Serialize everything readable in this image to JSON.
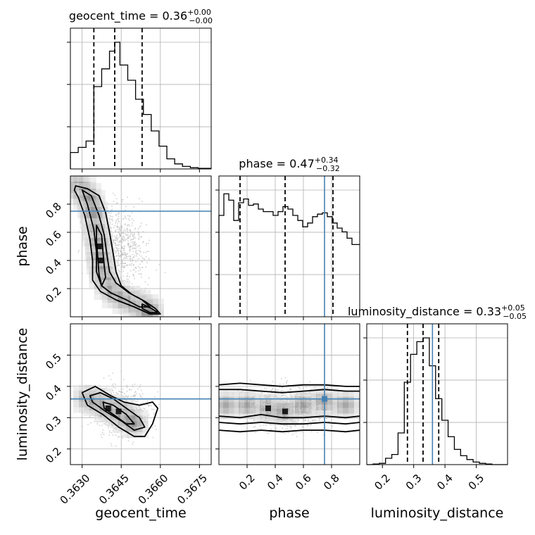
{
  "chart_data": {
    "type": "corner",
    "parameters": [
      {
        "name": "geocent_time",
        "axis_label": "geocent_time",
        "title": {
          "label": "geocent_time",
          "median": "0.36",
          "plus": "+0.00",
          "minus": "−0.00"
        },
        "range": [
          0.36255,
          0.36795
        ],
        "ticks": [
          0.363,
          0.3645,
          0.366,
          0.3675
        ],
        "tick_labels": [
          "0.3630",
          "0.3645",
          "0.3660",
          "0.3675"
        ],
        "quantiles": [
          0.36345,
          0.36425,
          0.3653
        ],
        "truth": null,
        "hist_x": [
          0.36255,
          0.36285,
          0.36315,
          0.36345,
          0.36375,
          0.36405,
          0.36425,
          0.36445,
          0.36475,
          0.36505,
          0.36535,
          0.36565,
          0.36595,
          0.36625,
          0.36655,
          0.36685,
          0.36715,
          0.36745,
          0.36795
        ],
        "hist_y": [
          0.13,
          0.17,
          0.22,
          0.65,
          0.79,
          0.93,
          1.0,
          0.82,
          0.7,
          0.55,
          0.43,
          0.3,
          0.18,
          0.08,
          0.04,
          0.02,
          0.01,
          0.005
        ],
        "hist_yticks": [
          0.333,
          0.667,
          1.0
        ]
      },
      {
        "name": "phase",
        "axis_label": "phase",
        "title": {
          "label": "phase",
          "median": "0.47",
          "plus": "+0.34",
          "minus": "−0.32"
        },
        "range": [
          0.0,
          1.0
        ],
        "ticks": [
          0.2,
          0.4,
          0.6,
          0.8
        ],
        "tick_labels": [
          "0.2",
          "0.4",
          "0.6",
          "0.8"
        ],
        "quantiles": [
          0.15,
          0.47,
          0.81
        ],
        "truth": 0.75,
        "hist_x": [
          0,
          0.035,
          0.07,
          0.105,
          0.14,
          0.175,
          0.21,
          0.245,
          0.28,
          0.315,
          0.35,
          0.385,
          0.42,
          0.455,
          0.49,
          0.525,
          0.56,
          0.595,
          0.63,
          0.665,
          0.7,
          0.735,
          0.77,
          0.805,
          0.84,
          0.875,
          0.91,
          0.945,
          1.0
        ],
        "hist_y": [
          0.8,
          0.97,
          0.92,
          0.76,
          0.9,
          0.93,
          0.88,
          0.89,
          0.85,
          0.83,
          0.83,
          0.8,
          0.83,
          0.87,
          0.85,
          0.8,
          0.76,
          0.71,
          0.74,
          0.79,
          0.81,
          0.82,
          0.79,
          0.74,
          0.7,
          0.67,
          0.62,
          0.57
        ],
        "hist_yticks": [
          0.333,
          0.667,
          1.0
        ]
      },
      {
        "name": "luminosity_distance",
        "axis_label": "luminosity_distance",
        "title": {
          "label": "luminosity_distance",
          "median": "0.33",
          "plus": "+0.05",
          "minus": "−0.05"
        },
        "range": [
          0.15,
          0.6
        ],
        "ticks": [
          0.2,
          0.3,
          0.4,
          0.5
        ],
        "tick_labels": [
          "0.2",
          "0.3",
          "0.4",
          "0.5"
        ],
        "quantiles": [
          0.28,
          0.33,
          0.38
        ],
        "truth": 0.36,
        "hist_x": [
          0.15,
          0.17,
          0.19,
          0.21,
          0.23,
          0.25,
          0.27,
          0.29,
          0.31,
          0.33,
          0.35,
          0.37,
          0.39,
          0.41,
          0.43,
          0.45,
          0.47,
          0.49,
          0.51,
          0.53,
          0.55,
          0.6
        ],
        "hist_y": [
          0.0,
          0.005,
          0.01,
          0.05,
          0.08,
          0.25,
          0.65,
          0.87,
          0.97,
          1.0,
          0.78,
          0.52,
          0.35,
          0.22,
          0.12,
          0.07,
          0.04,
          0.02,
          0.01,
          0.005,
          0.0
        ],
        "hist_yticks": [
          0.333,
          0.667,
          1.0
        ]
      }
    ],
    "pairs": [
      {
        "x": "geocent_time",
        "y": "phase",
        "truth_x": null,
        "truth_y": 0.75,
        "yticks": [
          0.2,
          0.4,
          0.6,
          0.8
        ],
        "ytick_labels": [
          "0.2",
          "0.4",
          "0.6",
          "0.8"
        ],
        "density_ridge": [
          [
            0.3627,
            0.94
          ],
          [
            0.363,
            0.9
          ],
          [
            0.3632,
            0.85
          ],
          [
            0.36335,
            0.8
          ],
          [
            0.36345,
            0.72
          ],
          [
            0.36355,
            0.6
          ],
          [
            0.36365,
            0.5
          ],
          [
            0.3637,
            0.4
          ],
          [
            0.3638,
            0.3
          ],
          [
            0.364,
            0.22
          ],
          [
            0.3643,
            0.16
          ],
          [
            0.3647,
            0.12
          ],
          [
            0.3651,
            0.09
          ],
          [
            0.3654,
            0.06
          ],
          [
            0.3656,
            0.03
          ]
        ],
        "contours": [
          [
            [
              0.36275,
              0.93
            ],
            [
              0.3632,
              0.91
            ],
            [
              0.36365,
              0.86
            ],
            [
              0.3639,
              0.74
            ],
            [
              0.36405,
              0.6
            ],
            [
              0.3642,
              0.44
            ],
            [
              0.3643,
              0.32
            ],
            [
              0.3645,
              0.22
            ],
            [
              0.3649,
              0.16
            ],
            [
              0.3654,
              0.11
            ],
            [
              0.3658,
              0.06
            ],
            [
              0.366,
              0.02
            ],
            [
              0.3656,
              0.02
            ],
            [
              0.365,
              0.07
            ],
            [
              0.3643,
              0.12
            ],
            [
              0.3637,
              0.18
            ],
            [
              0.3634,
              0.26
            ],
            [
              0.3634,
              0.4
            ],
            [
              0.3633,
              0.55
            ],
            [
              0.3631,
              0.72
            ],
            [
              0.36285,
              0.85
            ],
            [
              0.3627,
              0.9
            ]
          ],
          [
            [
              0.363,
              0.9
            ],
            [
              0.36335,
              0.86
            ],
            [
              0.36365,
              0.72
            ],
            [
              0.36385,
              0.58
            ],
            [
              0.36395,
              0.44
            ],
            [
              0.36405,
              0.32
            ],
            [
              0.3643,
              0.24
            ],
            [
              0.3648,
              0.17
            ],
            [
              0.3653,
              0.12
            ],
            [
              0.3656,
              0.07
            ],
            [
              0.3652,
              0.07
            ],
            [
              0.3647,
              0.12
            ],
            [
              0.3641,
              0.17
            ],
            [
              0.36375,
              0.22
            ],
            [
              0.36355,
              0.32
            ],
            [
              0.36355,
              0.46
            ],
            [
              0.36345,
              0.62
            ],
            [
              0.3632,
              0.8
            ]
          ],
          [
            [
              0.36355,
              0.65
            ],
            [
              0.36375,
              0.58
            ],
            [
              0.3638,
              0.46
            ],
            [
              0.36385,
              0.36
            ],
            [
              0.3639,
              0.28
            ],
            [
              0.36375,
              0.22
            ],
            [
              0.36365,
              0.3
            ],
            [
              0.3636,
              0.42
            ],
            [
              0.36355,
              0.54
            ]
          ],
          [
            [
              0.3653,
              0.09
            ],
            [
              0.36565,
              0.06
            ],
            [
              0.3659,
              0.03
            ],
            [
              0.3656,
              0.03
            ],
            [
              0.3653,
              0.06
            ]
          ]
        ],
        "scatter_center": [
          0.3644,
          0.5
        ],
        "scatter_spread": [
          0.0012,
          0.28
        ]
      },
      {
        "x": "geocent_time",
        "y": "luminosity_distance",
        "truth_x": null,
        "truth_y": 0.36,
        "yticks": [
          0.2,
          0.3,
          0.4,
          0.5
        ],
        "ytick_labels": [
          "0.2",
          "0.3",
          "0.4",
          "0.5"
        ],
        "density_ridge": [
          [
            0.3632,
            0.36
          ],
          [
            0.3636,
            0.35
          ],
          [
            0.364,
            0.33
          ],
          [
            0.3644,
            0.32
          ],
          [
            0.3647,
            0.3
          ],
          [
            0.365,
            0.28
          ]
        ],
        "contours": [
          [
            [
              0.363,
              0.38
            ],
            [
              0.3635,
              0.4
            ],
            [
              0.3641,
              0.37
            ],
            [
              0.3646,
              0.35
            ],
            [
              0.3652,
              0.34
            ],
            [
              0.3657,
              0.35
            ],
            [
              0.3659,
              0.33
            ],
            [
              0.3657,
              0.28
            ],
            [
              0.3654,
              0.24
            ],
            [
              0.365,
              0.24
            ],
            [
              0.3644,
              0.27
            ],
            [
              0.3638,
              0.31
            ],
            [
              0.3632,
              0.34
            ]
          ],
          [
            [
              0.3633,
              0.37
            ],
            [
              0.3637,
              0.38
            ],
            [
              0.3642,
              0.36
            ],
            [
              0.3647,
              0.33
            ],
            [
              0.3652,
              0.3
            ],
            [
              0.3654,
              0.27
            ],
            [
              0.365,
              0.26
            ],
            [
              0.3645,
              0.29
            ],
            [
              0.3639,
              0.32
            ],
            [
              0.3634,
              0.35
            ]
          ],
          [
            [
              0.3638,
              0.35
            ],
            [
              0.3642,
              0.34
            ],
            [
              0.3647,
              0.31
            ],
            [
              0.365,
              0.28
            ],
            [
              0.3647,
              0.28
            ],
            [
              0.3642,
              0.31
            ],
            [
              0.36385,
              0.33
            ]
          ]
        ],
        "scatter_center": [
          0.3645,
          0.32
        ],
        "scatter_spread": [
          0.0012,
          0.085
        ]
      },
      {
        "x": "phase",
        "y": "luminosity_distance",
        "truth_x": 0.75,
        "truth_y": 0.36,
        "yticks": [],
        "ytick_labels": [],
        "density_ridge": [
          [
            0.05,
            0.34
          ],
          [
            0.2,
            0.34
          ],
          [
            0.35,
            0.33
          ],
          [
            0.47,
            0.32
          ],
          [
            0.6,
            0.34
          ],
          [
            0.75,
            0.35
          ],
          [
            0.9,
            0.34
          ]
        ],
        "contours": [
          [
            [
              0.0,
              0.405
            ],
            [
              0.15,
              0.41
            ],
            [
              0.3,
              0.405
            ],
            [
              0.45,
              0.4
            ],
            [
              0.6,
              0.405
            ],
            [
              0.75,
              0.405
            ],
            [
              0.9,
              0.4
            ],
            [
              1.0,
              0.4
            ]
          ],
          [
            [
              0.0,
              0.39
            ],
            [
              0.15,
              0.39
            ],
            [
              0.3,
              0.385
            ],
            [
              0.45,
              0.38
            ],
            [
              0.6,
              0.385
            ],
            [
              0.75,
              0.39
            ],
            [
              0.9,
              0.385
            ],
            [
              1.0,
              0.385
            ]
          ],
          [
            [
              0.0,
              0.305
            ],
            [
              0.15,
              0.3
            ],
            [
              0.3,
              0.31
            ],
            [
              0.45,
              0.3
            ],
            [
              0.6,
              0.3
            ],
            [
              0.75,
              0.305
            ],
            [
              0.9,
              0.3
            ],
            [
              1.0,
              0.305
            ]
          ],
          [
            [
              0.0,
              0.285
            ],
            [
              0.15,
              0.28
            ],
            [
              0.3,
              0.285
            ],
            [
              0.45,
              0.28
            ],
            [
              0.6,
              0.28
            ],
            [
              0.75,
              0.285
            ],
            [
              0.9,
              0.28
            ],
            [
              1.0,
              0.285
            ]
          ],
          [
            [
              0.0,
              0.26
            ],
            [
              0.15,
              0.255
            ],
            [
              0.3,
              0.26
            ],
            [
              0.45,
              0.255
            ],
            [
              0.6,
              0.26
            ],
            [
              0.75,
              0.26
            ],
            [
              0.9,
              0.255
            ],
            [
              1.0,
              0.26
            ]
          ]
        ],
        "scatter_center": [
          0.5,
          0.33
        ],
        "scatter_spread": [
          0.3,
          0.075
        ]
      }
    ],
    "truth_color": "#4682b4",
    "quantile_style": "dashed",
    "grid": true
  }
}
